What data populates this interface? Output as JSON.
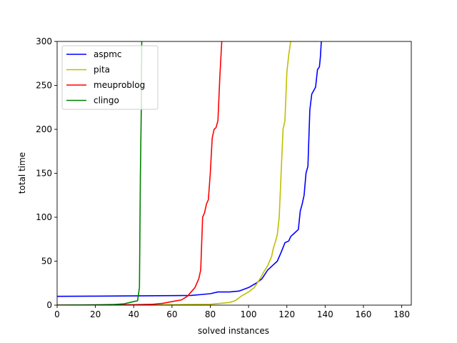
{
  "chart_data": {
    "type": "line",
    "title": "",
    "xlabel": "solved instances",
    "ylabel": "total time",
    "xlim": [
      0,
      185
    ],
    "ylim": [
      0,
      300
    ],
    "x_ticks": [
      0,
      20,
      40,
      60,
      80,
      100,
      120,
      140,
      160,
      180
    ],
    "y_ticks": [
      0,
      50,
      100,
      150,
      200,
      250,
      300
    ],
    "grid": false,
    "legend_position": "top-left",
    "series": [
      {
        "name": "aspmc",
        "color": "#0000ff",
        "points": [
          [
            0,
            10
          ],
          [
            20,
            10.2
          ],
          [
            40,
            10.5
          ],
          [
            60,
            10.8
          ],
          [
            70,
            11
          ],
          [
            75,
            12
          ],
          [
            80,
            13
          ],
          [
            84,
            15
          ],
          [
            90,
            15
          ],
          [
            95,
            16
          ],
          [
            100,
            20
          ],
          [
            104,
            25
          ],
          [
            107,
            30
          ],
          [
            110,
            40
          ],
          [
            113,
            46
          ],
          [
            115,
            50
          ],
          [
            117,
            60
          ],
          [
            119,
            71
          ],
          [
            121,
            73
          ],
          [
            122,
            78
          ],
          [
            124,
            82
          ],
          [
            126,
            86
          ],
          [
            127,
            107
          ],
          [
            128,
            115
          ],
          [
            129,
            125
          ],
          [
            130,
            150
          ],
          [
            131,
            158
          ],
          [
            132,
            222
          ],
          [
            133,
            240
          ],
          [
            134,
            244
          ],
          [
            135,
            248
          ],
          [
            136,
            268
          ],
          [
            137,
            271
          ],
          [
            137.5,
            282
          ],
          [
            138,
            300
          ]
        ]
      },
      {
        "name": "pita",
        "color": "#bfbf00",
        "points": [
          [
            0,
            0
          ],
          [
            40,
            0.2
          ],
          [
            60,
            0.5
          ],
          [
            80,
            1
          ],
          [
            90,
            3
          ],
          [
            93,
            5
          ],
          [
            96,
            10
          ],
          [
            100,
            15
          ],
          [
            103,
            20
          ],
          [
            106,
            30
          ],
          [
            108,
            38
          ],
          [
            110,
            45
          ],
          [
            111,
            50
          ],
          [
            112,
            55
          ],
          [
            113,
            65
          ],
          [
            114,
            72
          ],
          [
            115,
            80
          ],
          [
            116,
            100
          ],
          [
            117,
            150
          ],
          [
            118,
            200
          ],
          [
            119,
            210
          ],
          [
            120,
            265
          ],
          [
            121,
            285
          ],
          [
            122,
            300
          ]
        ]
      },
      {
        "name": "meuproblog",
        "color": "#ff0000",
        "points": [
          [
            0,
            0
          ],
          [
            40,
            0.5
          ],
          [
            50,
            1
          ],
          [
            55,
            2
          ],
          [
            60,
            4
          ],
          [
            65,
            6
          ],
          [
            68,
            10
          ],
          [
            70,
            15
          ],
          [
            72,
            20
          ],
          [
            73,
            25
          ],
          [
            74,
            30
          ],
          [
            75,
            40
          ],
          [
            76,
            100
          ],
          [
            77,
            105
          ],
          [
            78,
            115
          ],
          [
            79,
            120
          ],
          [
            80,
            150
          ],
          [
            81,
            190
          ],
          [
            82,
            200
          ],
          [
            83,
            202
          ],
          [
            84,
            210
          ],
          [
            85,
            260
          ],
          [
            86,
            300
          ]
        ]
      },
      {
        "name": "clingo",
        "color": "#008000",
        "points": [
          [
            0,
            0
          ],
          [
            20,
            0.3
          ],
          [
            30,
            0.8
          ],
          [
            35,
            1.5
          ],
          [
            38,
            3
          ],
          [
            40,
            4
          ],
          [
            42,
            5
          ],
          [
            43,
            20
          ],
          [
            43.5,
            150
          ],
          [
            44,
            230
          ],
          [
            44.2,
            300
          ]
        ]
      }
    ]
  }
}
